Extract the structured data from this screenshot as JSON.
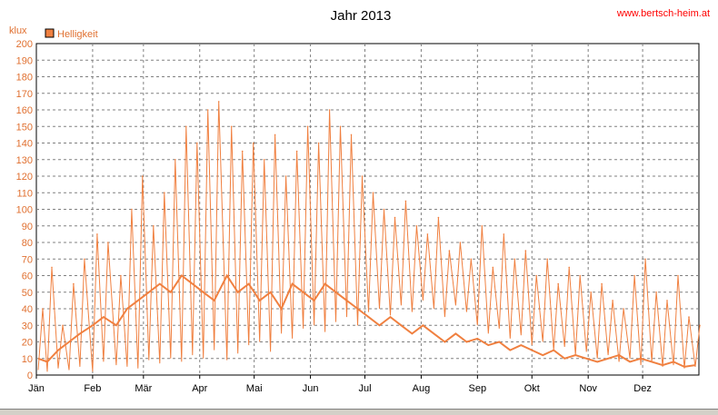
{
  "header": {
    "title": "Jahr 2013",
    "site": "www.bertsch-heim.at"
  },
  "chart_data": {
    "type": "line",
    "title": "Jahr 2013",
    "ylabel": "klux",
    "ylim": [
      0,
      200
    ],
    "yticks": [
      0,
      10,
      20,
      30,
      40,
      50,
      60,
      70,
      80,
      90,
      100,
      110,
      120,
      130,
      140,
      150,
      160,
      170,
      180,
      190,
      200
    ],
    "categories": [
      "Jän",
      "Feb",
      "Mär",
      "Apr",
      "Mai",
      "Jun",
      "Jul",
      "Aug",
      "Sep",
      "Okt",
      "Nov",
      "Dez"
    ],
    "grid": true,
    "legend": "top-left",
    "colors": {
      "line": "#f08040",
      "legend_box": "#f08040",
      "grid": "#808080"
    },
    "series": [
      {
        "name": "Helligkeit",
        "x": [
          1,
          6,
          12,
          18,
          24,
          31,
          37,
          44,
          50,
          56,
          62,
          68,
          74,
          80,
          86,
          92,
          98,
          105,
          111,
          117,
          123,
          129,
          135,
          141,
          147,
          153,
          159,
          165,
          171,
          177,
          183,
          189,
          195,
          201,
          207,
          213,
          219,
          225,
          231,
          237,
          243,
          249,
          255,
          261,
          267,
          273,
          279,
          285,
          291,
          297,
          303,
          309,
          315,
          321,
          327,
          333,
          339,
          345,
          351,
          357,
          363
        ],
        "min": [
          3,
          2,
          4,
          3,
          5,
          2,
          8,
          6,
          5,
          4,
          9,
          7,
          10,
          8,
          12,
          10,
          15,
          9,
          13,
          18,
          20,
          14,
          25,
          22,
          28,
          30,
          26,
          32,
          35,
          30,
          38,
          40,
          36,
          42,
          38,
          45,
          40,
          35,
          42,
          38,
          30,
          25,
          28,
          22,
          24,
          18,
          20,
          15,
          17,
          12,
          14,
          10,
          12,
          8,
          10,
          6,
          8,
          5,
          6,
          4,
          5
        ],
        "max": [
          40,
          65,
          30,
          55,
          70,
          85,
          80,
          60,
          100,
          120,
          90,
          110,
          130,
          150,
          140,
          160,
          165,
          150,
          135,
          140,
          130,
          145,
          120,
          135,
          150,
          140,
          160,
          150,
          145,
          120,
          110,
          100,
          95,
          105,
          90,
          85,
          95,
          75,
          80,
          70,
          90,
          65,
          85,
          70,
          75,
          60,
          70,
          55,
          65,
          60,
          50,
          55,
          45,
          40,
          60,
          70,
          50,
          45,
          60,
          35,
          30
        ],
        "typical": [
          10,
          8,
          15,
          20,
          25,
          30,
          35,
          30,
          40,
          45,
          50,
          55,
          50,
          60,
          55,
          50,
          45,
          60,
          50,
          55,
          45,
          50,
          40,
          55,
          50,
          45,
          55,
          50,
          45,
          40,
          35,
          30,
          35,
          30,
          25,
          30,
          25,
          20,
          25,
          20,
          22,
          18,
          20,
          15,
          18,
          15,
          12,
          15,
          10,
          12,
          10,
          8,
          10,
          12,
          8,
          10,
          8,
          6,
          8,
          5,
          6
        ]
      }
    ]
  }
}
